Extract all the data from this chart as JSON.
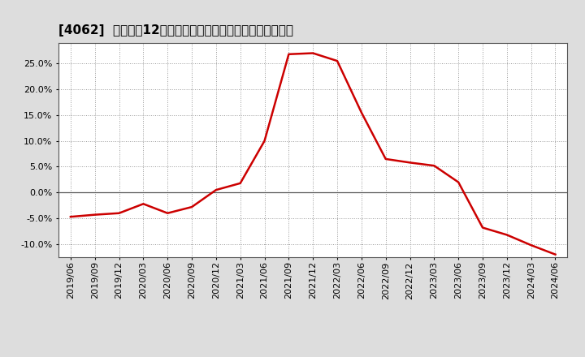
{
  "title": "[4062]  売上高の12か月移動合計の対前年同期増減率の推移",
  "dates": [
    "2019/06",
    "2019/09",
    "2019/12",
    "2020/03",
    "2020/06",
    "2020/09",
    "2020/12",
    "2021/03",
    "2021/06",
    "2021/09",
    "2021/12",
    "2022/03",
    "2022/06",
    "2022/09",
    "2022/12",
    "2023/03",
    "2023/06",
    "2023/09",
    "2023/12",
    "2024/03",
    "2024/06"
  ],
  "values": [
    -0.047,
    -0.043,
    -0.04,
    -0.022,
    -0.04,
    -0.028,
    0.005,
    0.018,
    0.1,
    0.268,
    0.27,
    0.255,
    0.155,
    0.065,
    0.058,
    0.052,
    0.02,
    -0.068,
    -0.082,
    -0.102,
    -0.12
  ],
  "line_color": "#cc0000",
  "background_color": "#dddddd",
  "plot_bg_color": "#ffffff",
  "ylim": [
    -0.125,
    0.29
  ],
  "yticks": [
    -0.1,
    -0.05,
    0.0,
    0.05,
    0.1,
    0.15,
    0.2,
    0.25
  ],
  "grid_color": "#999999",
  "zero_line_color": "#555555",
  "title_fontsize": 11,
  "tick_fontsize": 8
}
